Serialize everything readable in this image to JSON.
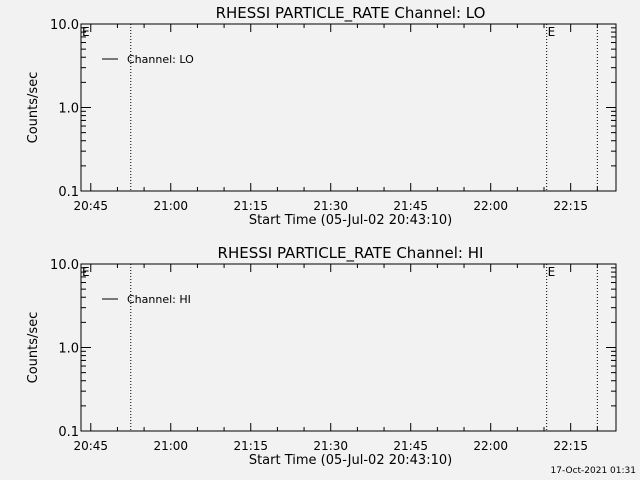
{
  "footer": "17-Oct-2021 01:31",
  "chart_data": [
    {
      "type": "line",
      "title": "RHESSI PARTICLE_RATE Channel: LO",
      "xlabel": "Start Time (05-Jul-02 20:43:10)",
      "ylabel": "Counts/sec",
      "yscale": "log",
      "ylim": [
        0.1,
        10.0
      ],
      "xlim": [
        "20:43:10",
        "22:23:30"
      ],
      "x_ticks": [
        "20:45",
        "21:00",
        "21:15",
        "21:30",
        "21:45",
        "22:00",
        "22:15"
      ],
      "y_ticks": [
        "0.1",
        "1.0",
        "10.0"
      ],
      "legend": {
        "placement": "top-left",
        "entries": [
          "Channel: LO"
        ]
      },
      "vertical_markers": [
        {
          "time": "20:52:30",
          "style": "dotted"
        },
        {
          "time": "22:10:30",
          "style": "dotted",
          "label": "E"
        },
        {
          "time": "22:20:00",
          "style": "dotted"
        }
      ],
      "corner_label": "E",
      "series": [
        {
          "name": "Channel: LO",
          "x": [],
          "y": []
        }
      ],
      "grid": false
    },
    {
      "type": "line",
      "title": "RHESSI PARTICLE_RATE Channel: HI",
      "xlabel": "Start Time (05-Jul-02 20:43:10)",
      "ylabel": "Counts/sec",
      "yscale": "log",
      "ylim": [
        0.1,
        10.0
      ],
      "xlim": [
        "20:43:10",
        "22:23:30"
      ],
      "x_ticks": [
        "20:45",
        "21:00",
        "21:15",
        "21:30",
        "21:45",
        "22:00",
        "22:15"
      ],
      "y_ticks": [
        "0.1",
        "1.0",
        "10.0"
      ],
      "legend": {
        "placement": "top-left",
        "entries": [
          "Channel: HI"
        ]
      },
      "vertical_markers": [
        {
          "time": "20:52:30",
          "style": "dotted"
        },
        {
          "time": "22:10:30",
          "style": "dotted",
          "label": "E"
        },
        {
          "time": "22:20:00",
          "style": "dotted"
        }
      ],
      "corner_label": "E",
      "series": [
        {
          "name": "Channel: HI",
          "x": [],
          "y": []
        }
      ],
      "grid": false
    }
  ]
}
